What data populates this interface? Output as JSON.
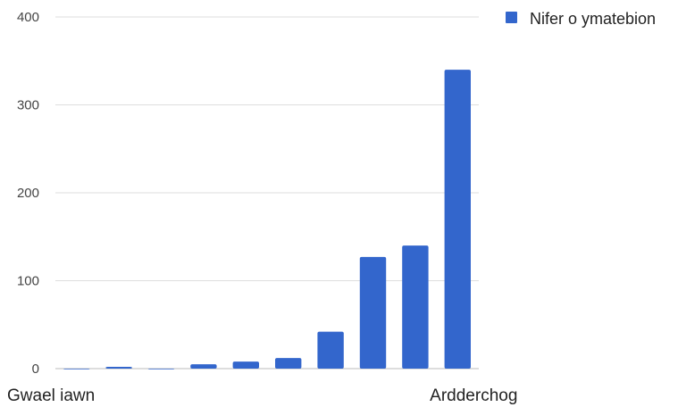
{
  "chart_data": {
    "type": "bar",
    "categories": [
      "Gwael iawn",
      "",
      "",
      "",
      "",
      "",
      "",
      "",
      "",
      "Ardderchog"
    ],
    "series": [
      {
        "name": "Nifer o ymatebion",
        "values": [
          0,
          2,
          0,
          5,
          8,
          12,
          42,
          127,
          140,
          340
        ]
      }
    ],
    "y_ticks": [
      "0",
      "100",
      "200",
      "300",
      "400"
    ],
    "ylim": [
      0,
      400
    ],
    "grid": true,
    "legend": "top-right",
    "colors": {
      "bar": "#3366cc",
      "grid": "#dddddd"
    }
  }
}
